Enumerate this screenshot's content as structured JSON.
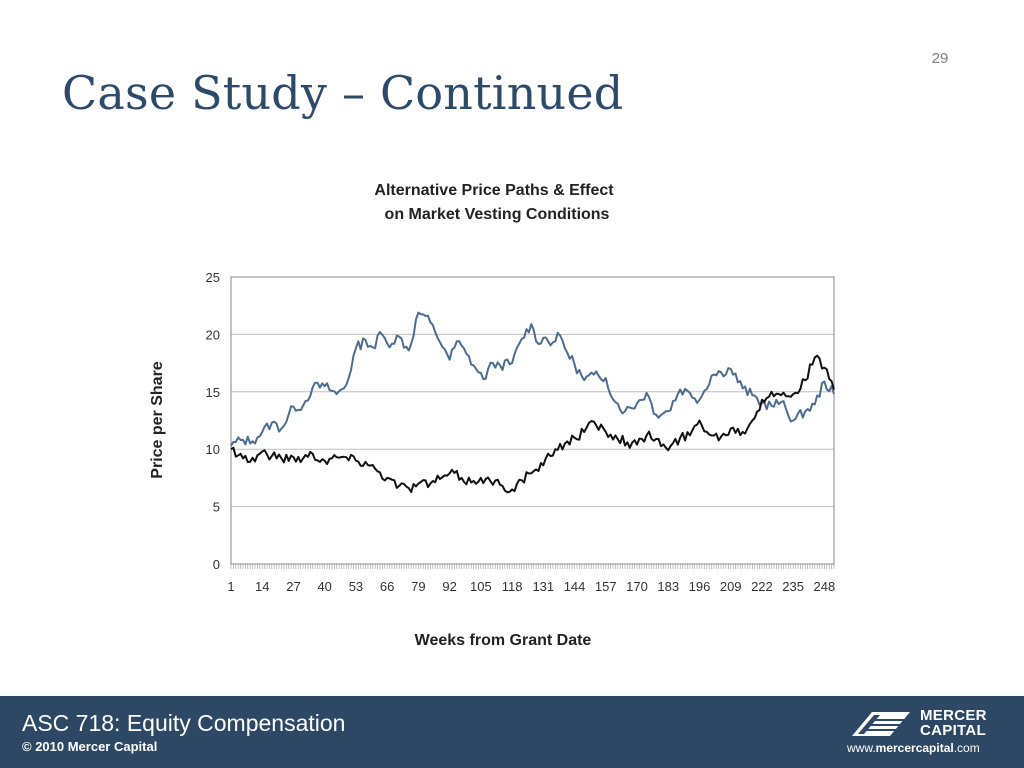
{
  "slide": {
    "number": "29",
    "title": "Case Study – Continued"
  },
  "chart_data": {
    "type": "line",
    "title_line1": "Alternative Price Paths & Effect",
    "title_line2": "on Market Vesting Conditions",
    "xlabel": "Weeks from Grant Date",
    "ylabel": "Price per Share",
    "ylim": [
      0,
      25
    ],
    "xlim": [
      1,
      252
    ],
    "yticks": [
      0,
      5,
      10,
      15,
      20,
      25
    ],
    "xtick_labels": [
      "1",
      "14",
      "27",
      "40",
      "53",
      "66",
      "79",
      "92",
      "105",
      "118",
      "131",
      "144",
      "157",
      "170",
      "183",
      "196",
      "209",
      "222",
      "235",
      "248"
    ],
    "grid": "horizontal",
    "colors": {
      "series_blue": "#4d6c8f",
      "series_black": "#111111",
      "grid": "#bfbfbf"
    },
    "series": [
      {
        "color": "#4d6c8f",
        "points": [
          [
            1,
            10.3
          ],
          [
            5,
            10.8
          ],
          [
            10,
            10.7
          ],
          [
            14,
            11.5
          ],
          [
            18,
            12.3
          ],
          [
            22,
            11.8
          ],
          [
            27,
            13.7
          ],
          [
            31,
            13.8
          ],
          [
            35,
            15.4
          ],
          [
            40,
            15.5
          ],
          [
            45,
            14.8
          ],
          [
            49,
            15.6
          ],
          [
            53,
            18.8
          ],
          [
            57,
            19.5
          ],
          [
            61,
            18.8
          ],
          [
            63,
            20.2
          ],
          [
            66,
            19.2
          ],
          [
            71,
            19.8
          ],
          [
            75,
            18.6
          ],
          [
            79,
            21.9
          ],
          [
            82,
            21.6
          ],
          [
            86,
            20.2
          ],
          [
            90,
            18.7
          ],
          [
            92,
            17.8
          ],
          [
            95,
            19.4
          ],
          [
            99,
            18.3
          ],
          [
            103,
            17.0
          ],
          [
            106,
            16.1
          ],
          [
            110,
            17.5
          ],
          [
            113,
            17.3
          ],
          [
            118,
            17.5
          ],
          [
            122,
            19.6
          ],
          [
            126,
            20.9
          ],
          [
            128,
            19.4
          ],
          [
            131,
            19.7
          ],
          [
            135,
            19.3
          ],
          [
            138,
            19.9
          ],
          [
            141,
            18.4
          ],
          [
            144,
            17.4
          ],
          [
            148,
            16.0
          ],
          [
            152,
            16.5
          ],
          [
            155,
            16.1
          ],
          [
            157,
            16.2
          ],
          [
            161,
            14.1
          ],
          [
            165,
            13.3
          ],
          [
            170,
            14.0
          ],
          [
            174,
            14.9
          ],
          [
            178,
            13.0
          ],
          [
            183,
            13.3
          ],
          [
            188,
            15.2
          ],
          [
            192,
            14.9
          ],
          [
            196,
            14.3
          ],
          [
            201,
            16.4
          ],
          [
            205,
            16.7
          ],
          [
            209,
            17.0
          ],
          [
            214,
            15.3
          ],
          [
            218,
            14.7
          ],
          [
            222,
            14.0
          ],
          [
            226,
            13.8
          ],
          [
            230,
            14.1
          ],
          [
            235,
            12.5
          ],
          [
            240,
            13.3
          ],
          [
            244,
            13.9
          ],
          [
            248,
            15.9
          ],
          [
            252,
            14.8
          ]
        ]
      },
      {
        "color": "#111111",
        "points": [
          [
            1,
            10.0
          ],
          [
            5,
            9.6
          ],
          [
            9,
            8.9
          ],
          [
            14,
            9.8
          ],
          [
            18,
            9.4
          ],
          [
            22,
            9.2
          ],
          [
            27,
            9.3
          ],
          [
            31,
            9.2
          ],
          [
            35,
            9.6
          ],
          [
            40,
            9.0
          ],
          [
            45,
            9.3
          ],
          [
            49,
            9.3
          ],
          [
            53,
            9.0
          ],
          [
            57,
            8.9
          ],
          [
            61,
            8.3
          ],
          [
            66,
            7.5
          ],
          [
            71,
            6.8
          ],
          [
            75,
            6.6
          ],
          [
            79,
            7.0
          ],
          [
            84,
            7.0
          ],
          [
            88,
            7.4
          ],
          [
            92,
            7.9
          ],
          [
            97,
            7.5
          ],
          [
            101,
            7.1
          ],
          [
            105,
            7.5
          ],
          [
            109,
            7.2
          ],
          [
            113,
            6.9
          ],
          [
            118,
            6.5
          ],
          [
            122,
            7.3
          ],
          [
            126,
            7.9
          ],
          [
            131,
            8.6
          ],
          [
            136,
            10.0
          ],
          [
            140,
            10.5
          ],
          [
            144,
            11.0
          ],
          [
            148,
            11.5
          ],
          [
            152,
            12.4
          ],
          [
            157,
            11.5
          ],
          [
            161,
            11.2
          ],
          [
            166,
            10.6
          ],
          [
            170,
            10.4
          ],
          [
            174,
            11.2
          ],
          [
            178,
            10.9
          ],
          [
            183,
            9.9
          ],
          [
            188,
            11.0
          ],
          [
            192,
            11.2
          ],
          [
            196,
            12.5
          ],
          [
            201,
            11.2
          ],
          [
            205,
            11.1
          ],
          [
            209,
            11.8
          ],
          [
            214,
            11.5
          ],
          [
            218,
            12.5
          ],
          [
            222,
            14.3
          ],
          [
            226,
            15.0
          ],
          [
            230,
            14.7
          ],
          [
            235,
            14.8
          ],
          [
            240,
            16.0
          ],
          [
            244,
            18.0
          ],
          [
            248,
            17.1
          ],
          [
            252,
            15.2
          ]
        ]
      }
    ]
  },
  "footer": {
    "title": "ASC 718: Equity Compensation",
    "copyright": "© 2010 Mercer Capital",
    "logo_line1": "MERCER",
    "logo_line2": "CAPITAL",
    "url_prefix": "www.",
    "url_brand": "mercercapital",
    "url_suffix": ".com"
  }
}
